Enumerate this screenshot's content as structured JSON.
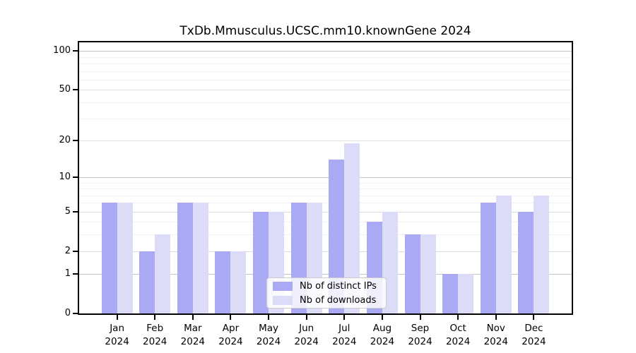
{
  "title": "TxDb.Mmusculus.UCSC.mm10.knownGene 2024",
  "chart_data": {
    "type": "bar",
    "title": "TxDb.Mmusculus.UCSC.mm10.knownGene 2024",
    "categories": [
      "Jan",
      "Feb",
      "Mar",
      "Apr",
      "May",
      "Jun",
      "Jul",
      "Aug",
      "Sep",
      "Oct",
      "Nov",
      "Dec"
    ],
    "year_label": "2024",
    "series": [
      {
        "name": "Nb of distinct IPs",
        "color": "#a9a9f4",
        "values": [
          6,
          2,
          6,
          2,
          5,
          6,
          14,
          4,
          3,
          1,
          6,
          5
        ]
      },
      {
        "name": "Nb of downloads",
        "color": "#dcdcf8",
        "values": [
          6,
          3,
          6,
          2,
          5,
          6,
          19,
          5,
          3,
          1,
          7,
          7
        ]
      }
    ],
    "xlabel": "",
    "ylabel": "",
    "yscale": "log1p",
    "yticks": [
      0,
      1,
      2,
      5,
      10,
      20,
      50,
      100
    ],
    "minor_yticks": [
      3,
      4,
      6,
      7,
      8,
      9,
      30,
      40,
      60,
      70,
      80,
      90
    ],
    "ylim": [
      0,
      117
    ],
    "grid": "horizontal",
    "legend_position": "lower center",
    "colors": {
      "axis": "#000000",
      "grid_decade": "#c2c2c2",
      "grid_labeled": "#dedede",
      "grid_minor": "#f1f1f1",
      "legend_border": "#cccccc"
    }
  }
}
